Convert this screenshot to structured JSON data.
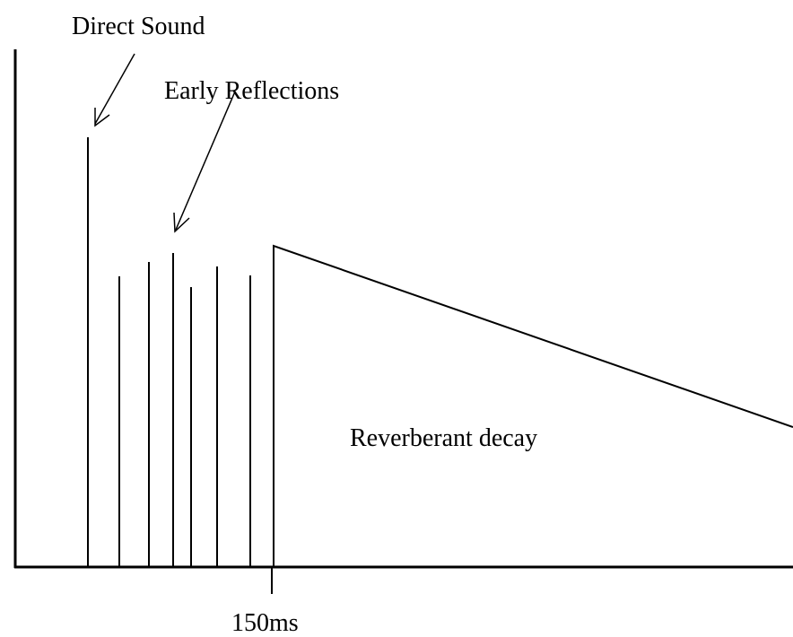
{
  "labels": {
    "direct": "Direct Sound",
    "early": "Early Reflections",
    "reverb": "Reverberant decay",
    "time": "150ms"
  }
}
